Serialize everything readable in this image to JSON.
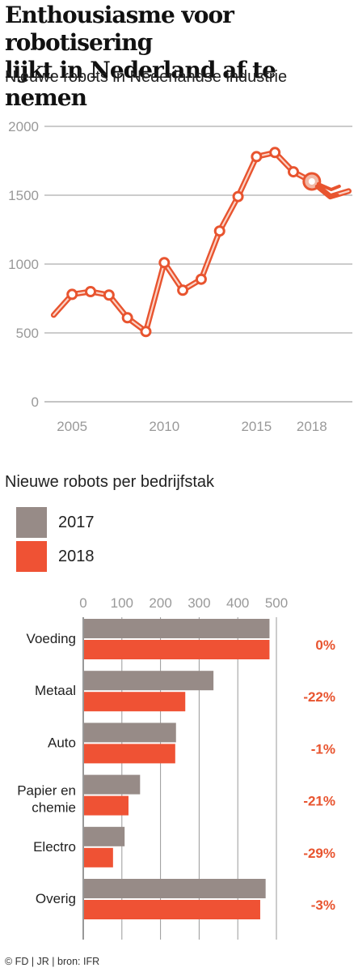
{
  "title_line1": "Enthousiasme voor robotisering",
  "title_line2": "lijkt in Nederland af te nemen",
  "footer": "© FD | JR | bron: IFR",
  "colors": {
    "line": "#e8542f",
    "bar2017": "#978b87",
    "bar2018": "#ef5234",
    "pct": "#e8542f",
    "grid": "#999999"
  },
  "chart_data": [
    {
      "type": "line",
      "subtitle": "Nieuwe robots in Nederlandse industrie",
      "x": [
        2004,
        2005,
        2006,
        2007,
        2008,
        2009,
        2010,
        2011,
        2012,
        2013,
        2014,
        2015,
        2016,
        2017,
        2018,
        2019,
        2020
      ],
      "y": [
        630,
        780,
        800,
        775,
        610,
        510,
        1010,
        810,
        890,
        1240,
        1490,
        1780,
        1810,
        1670,
        1600,
        1490,
        1530
      ],
      "xlim": [
        2003.5,
        2020.2
      ],
      "ylim": [
        0,
        2000
      ],
      "yticks": [
        "0",
        "500",
        "1000",
        "1500",
        "2000"
      ],
      "xticks": [
        "2005",
        "2010",
        "2015",
        "2018"
      ],
      "grid": true
    },
    {
      "type": "bar",
      "subtitle": "Nieuwe robots per bedrijfstak",
      "orientation": "horizontal",
      "categories": [
        "Voeding",
        "Metaal",
        "Auto",
        "Papier en chemie",
        "Electro",
        "Overig"
      ],
      "series": [
        {
          "name": "2017",
          "values": [
            480,
            335,
            238,
            145,
            105,
            470
          ]
        },
        {
          "name": "2018",
          "values": [
            480,
            262,
            236,
            115,
            75,
            456
          ]
        }
      ],
      "change_labels": [
        "0%",
        "-22%",
        "-1%",
        "-21%",
        "-29%",
        "-3%"
      ],
      "xlim": [
        0,
        500
      ],
      "xticks": [
        "0",
        "100",
        "200",
        "300",
        "400",
        "500"
      ],
      "legend": "top-left",
      "grid": true
    }
  ]
}
